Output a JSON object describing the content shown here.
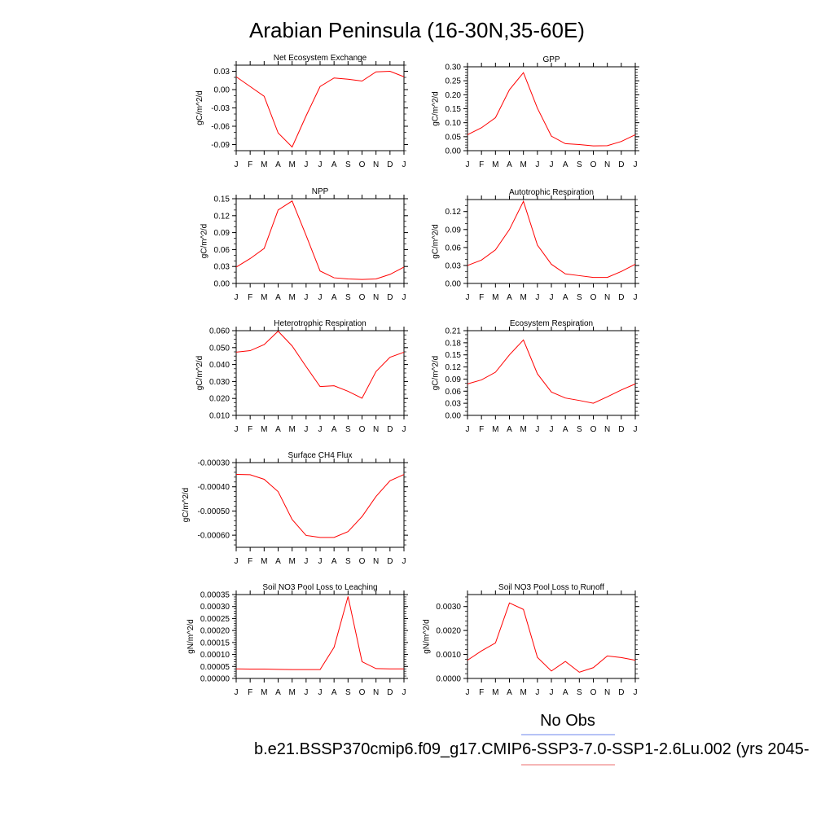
{
  "title": "Arabian Peninsula (16-30N,35-60E)",
  "legend": {
    "obs_label": "No Obs",
    "obs_color": "#8a9ff0",
    "case_label": "b.e21.BSSP370cmip6.f09_g17.CMIP6-SSP3-7.0-SSP1-2.6Lu.002 (yrs 2045-",
    "case_color": "#f08a8a"
  },
  "line_color": "#ff0000",
  "months": [
    "J",
    "F",
    "M",
    "A",
    "M",
    "J",
    "J",
    "A",
    "S",
    "O",
    "N",
    "D",
    "J"
  ],
  "chart_data": [
    {
      "type": "line",
      "title": "Net Ecosystem Exchange",
      "ylabel": "gC/m^2/d",
      "ylim": [
        -0.1,
        0.04
      ],
      "yticks": [
        "0.03",
        "0.00",
        "-0.03",
        "-0.06",
        "-0.09"
      ],
      "ytick_values": [
        0.03,
        0.0,
        -0.03,
        -0.06,
        -0.09
      ],
      "minor_step": 0.01,
      "x": [
        "J",
        "F",
        "M",
        "A",
        "M",
        "J",
        "J",
        "A",
        "S",
        "O",
        "N",
        "D",
        "J"
      ],
      "values": [
        0.021,
        0.005,
        -0.011,
        -0.071,
        -0.094,
        -0.043,
        0.005,
        0.019,
        0.017,
        0.014,
        0.029,
        0.03,
        0.021
      ]
    },
    {
      "type": "line",
      "title": "GPP",
      "ylabel": "gC/m^2/d",
      "ylim": [
        0,
        0.3
      ],
      "yticks": [
        "0.30",
        "0.25",
        "0.20",
        "0.15",
        "0.10",
        "0.05",
        "0.00"
      ],
      "ytick_values": [
        0.3,
        0.25,
        0.2,
        0.15,
        0.1,
        0.05,
        0.0
      ],
      "minor_step": 0.01,
      "x": [
        "J",
        "F",
        "M",
        "A",
        "M",
        "J",
        "J",
        "A",
        "S",
        "O",
        "N",
        "D",
        "J"
      ],
      "values": [
        0.057,
        0.082,
        0.118,
        0.218,
        0.279,
        0.152,
        0.052,
        0.025,
        0.022,
        0.017,
        0.018,
        0.033,
        0.057
      ]
    },
    {
      "type": "line",
      "title": "NPP",
      "ylabel": "gC/m^2/d",
      "ylim": [
        0,
        0.15
      ],
      "yticks": [
        "0.15",
        "0.12",
        "0.09",
        "0.06",
        "0.03",
        "0.00"
      ],
      "ytick_values": [
        0.15,
        0.12,
        0.09,
        0.06,
        0.03,
        0.0
      ],
      "minor_step": 0.01,
      "x": [
        "J",
        "F",
        "M",
        "A",
        "M",
        "J",
        "J",
        "A",
        "S",
        "O",
        "N",
        "D",
        "J"
      ],
      "values": [
        0.029,
        0.044,
        0.062,
        0.13,
        0.146,
        0.085,
        0.022,
        0.01,
        0.008,
        0.007,
        0.008,
        0.016,
        0.029
      ]
    },
    {
      "type": "line",
      "title": "Autotrophic Respiration",
      "ylabel": "gC/m^2/d",
      "ylim": [
        0,
        0.14
      ],
      "yticks": [
        "0.12",
        "0.09",
        "0.06",
        "0.03",
        "0.00"
      ],
      "ytick_values": [
        0.12,
        0.09,
        0.06,
        0.03,
        0.0
      ],
      "minor_step": 0.01,
      "x": [
        "J",
        "F",
        "M",
        "A",
        "M",
        "J",
        "J",
        "A",
        "S",
        "O",
        "N",
        "D",
        "J"
      ],
      "values": [
        0.03,
        0.039,
        0.056,
        0.09,
        0.137,
        0.064,
        0.032,
        0.016,
        0.013,
        0.01,
        0.01,
        0.02,
        0.032
      ]
    },
    {
      "type": "line",
      "title": "Heterotrophic Respiration",
      "ylabel": "gC/m^2/d",
      "ylim": [
        0.01,
        0.06
      ],
      "yticks": [
        "0.060",
        "0.050",
        "0.040",
        "0.030",
        "0.020",
        "0.010"
      ],
      "ytick_values": [
        0.06,
        0.05,
        0.04,
        0.03,
        0.02,
        0.01
      ],
      "minor_step": 0.0025,
      "x": [
        "J",
        "F",
        "M",
        "A",
        "M",
        "J",
        "J",
        "A",
        "S",
        "O",
        "N",
        "D",
        "J"
      ],
      "values": [
        0.0473,
        0.0482,
        0.0518,
        0.0597,
        0.051,
        0.0388,
        0.027,
        0.0275,
        0.0242,
        0.0201,
        0.0359,
        0.0443,
        0.0473
      ]
    },
    {
      "type": "line",
      "title": "Ecosystem Respiration",
      "ylabel": "gC/m^2/d",
      "ylim": [
        0,
        0.21
      ],
      "yticks": [
        "0.21",
        "0.18",
        "0.15",
        "0.12",
        "0.09",
        "0.06",
        "0.03",
        "0.00"
      ],
      "ytick_values": [
        0.21,
        0.18,
        0.15,
        0.12,
        0.09,
        0.06,
        0.03,
        0.0
      ],
      "minor_step": 0.01,
      "x": [
        "J",
        "F",
        "M",
        "A",
        "M",
        "J",
        "J",
        "A",
        "S",
        "O",
        "N",
        "D",
        "J"
      ],
      "values": [
        0.078,
        0.088,
        0.107,
        0.15,
        0.187,
        0.103,
        0.058,
        0.043,
        0.037,
        0.03,
        0.046,
        0.063,
        0.078
      ]
    },
    {
      "type": "line",
      "title": "Surface CH4 Flux",
      "ylabel": "gC/m^2/d",
      "ylim": [
        -0.00065,
        -0.0003
      ],
      "yticks": [
        "-0.00030",
        "-0.00040",
        "-0.00050",
        "-0.00060"
      ],
      "ytick_values": [
        -0.0003,
        -0.0004,
        -0.0005,
        -0.0006
      ],
      "minor_step": 2e-05,
      "x": [
        "J",
        "F",
        "M",
        "A",
        "M",
        "J",
        "J",
        "A",
        "S",
        "O",
        "N",
        "D",
        "J"
      ],
      "values": [
        -0.000349,
        -0.00035,
        -0.000369,
        -0.00042,
        -0.000535,
        -0.000601,
        -0.000609,
        -0.000609,
        -0.000585,
        -0.000523,
        -0.00044,
        -0.000375,
        -0.000349
      ]
    },
    {
      "type": "line",
      "title": "Soil NO3 Pool Loss to Leaching",
      "ylabel": "gN/m^2/d",
      "ylim": [
        0,
        0.00035
      ],
      "yticks": [
        "0.00035",
        "0.00030",
        "0.00025",
        "0.00020",
        "0.00015",
        "0.00010",
        "0.00005",
        "0.00000"
      ],
      "ytick_values": [
        0.00035,
        0.0003,
        0.00025,
        0.0002,
        0.00015,
        0.0001,
        5e-05,
        0.0
      ],
      "minor_step": 1e-05,
      "x": [
        "J",
        "F",
        "M",
        "A",
        "M",
        "J",
        "J",
        "A",
        "S",
        "O",
        "N",
        "D",
        "J"
      ],
      "values": [
        4e-05,
        3.9e-05,
        3.9e-05,
        3.8e-05,
        3.7e-05,
        3.7e-05,
        3.7e-05,
        0.00013,
        0.000342,
        7e-05,
        4.1e-05,
        4e-05,
        4e-05
      ]
    },
    {
      "type": "line",
      "title": "Soil NO3 Pool Loss to Runoff",
      "ylabel": "gN/m^2/d",
      "ylim": [
        0,
        0.0035
      ],
      "yticks": [
        "0.0030",
        "0.0020",
        "0.0010",
        "0.0000"
      ],
      "ytick_values": [
        0.003,
        0.002,
        0.001,
        0.0
      ],
      "minor_step": 0.0002,
      "x": [
        "J",
        "F",
        "M",
        "A",
        "M",
        "J",
        "J",
        "A",
        "S",
        "O",
        "N",
        "D",
        "J"
      ],
      "values": [
        0.00076,
        0.00115,
        0.00148,
        0.00315,
        0.00288,
        0.00088,
        0.00031,
        0.00071,
        0.00026,
        0.00045,
        0.00094,
        0.00087,
        0.00076
      ]
    }
  ]
}
